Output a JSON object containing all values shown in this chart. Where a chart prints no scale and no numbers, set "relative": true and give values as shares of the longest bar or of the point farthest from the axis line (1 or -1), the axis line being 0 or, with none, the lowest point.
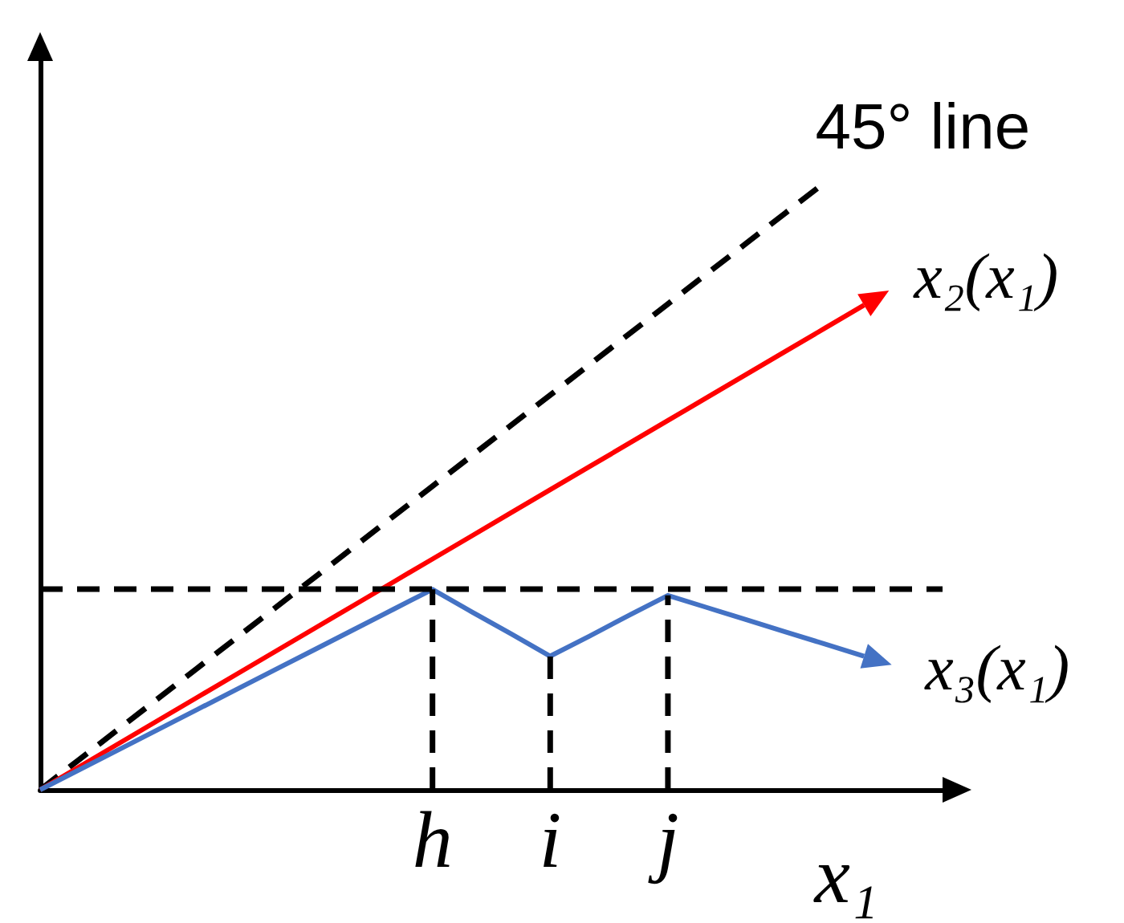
{
  "chart_data": {
    "type": "line",
    "relative": true,
    "xlabel": "x₁",
    "tick_labels": "x",
    "marker": "none",
    "categories": [
      null,
      null,
      null,
      null,
      null,
      null,
      null,
      null,
      null,
      null,
      "h",
      null,
      null,
      "i",
      null,
      null,
      "j",
      null,
      null,
      null,
      null,
      null,
      null,
      null
    ],
    "series": [
      {
        "name": "45° line",
        "color": "#000000",
        "line_style": "dashed",
        "values": [
          0,
          0.05,
          0.1,
          0.15,
          0.2,
          0.25,
          0.3,
          0.35,
          0.4,
          0.45,
          0.5,
          0.55,
          0.6,
          0.65,
          0.7,
          0.75,
          0.8,
          0.85,
          0.9,
          0.95,
          1,
          null,
          null,
          null
        ]
      },
      {
        "name": "x₂(x₁)",
        "color": "#ff0000",
        "line_style": "solid",
        "values": [
          0,
          0.038,
          0.076,
          0.114,
          0.152,
          0.19,
          0.228,
          0.266,
          0.304,
          0.342,
          0.38,
          0.418,
          0.456,
          0.494,
          0.532,
          0.57,
          0.608,
          0.646,
          0.684,
          0.722,
          0.76,
          0.798,
          null,
          null
        ]
      },
      {
        "name": "x₃(x₁)",
        "color": "#4472c4",
        "line_style": "solid",
        "values": [
          0,
          0.033,
          0.066,
          0.099,
          0.132,
          0.165,
          0.198,
          0.231,
          0.264,
          0.297,
          0.33,
          0.293,
          0.257,
          0.22,
          0.253,
          0.287,
          0.32,
          0.3,
          0.28,
          0.26,
          0.24,
          0.22,
          null,
          null
        ]
      },
      {
        "color": "#000000",
        "line_style": "dashed",
        "x": [
          "h",
          "h"
        ],
        "values": [
          0,
          0.33
        ]
      },
      {
        "color": "#000000",
        "line_style": "dashed",
        "x": [
          "i",
          "i"
        ],
        "values": [
          0,
          0.22
        ]
      },
      {
        "color": "#000000",
        "line_style": "dashed",
        "x": [
          "j",
          "j"
        ],
        "values": [
          0,
          0.32
        ]
      }
    ],
    "ref_lines": [
      {
        "axis": "y",
        "value": 0.33,
        "color": "#000000",
        "line_style": "dashed"
      }
    ]
  }
}
